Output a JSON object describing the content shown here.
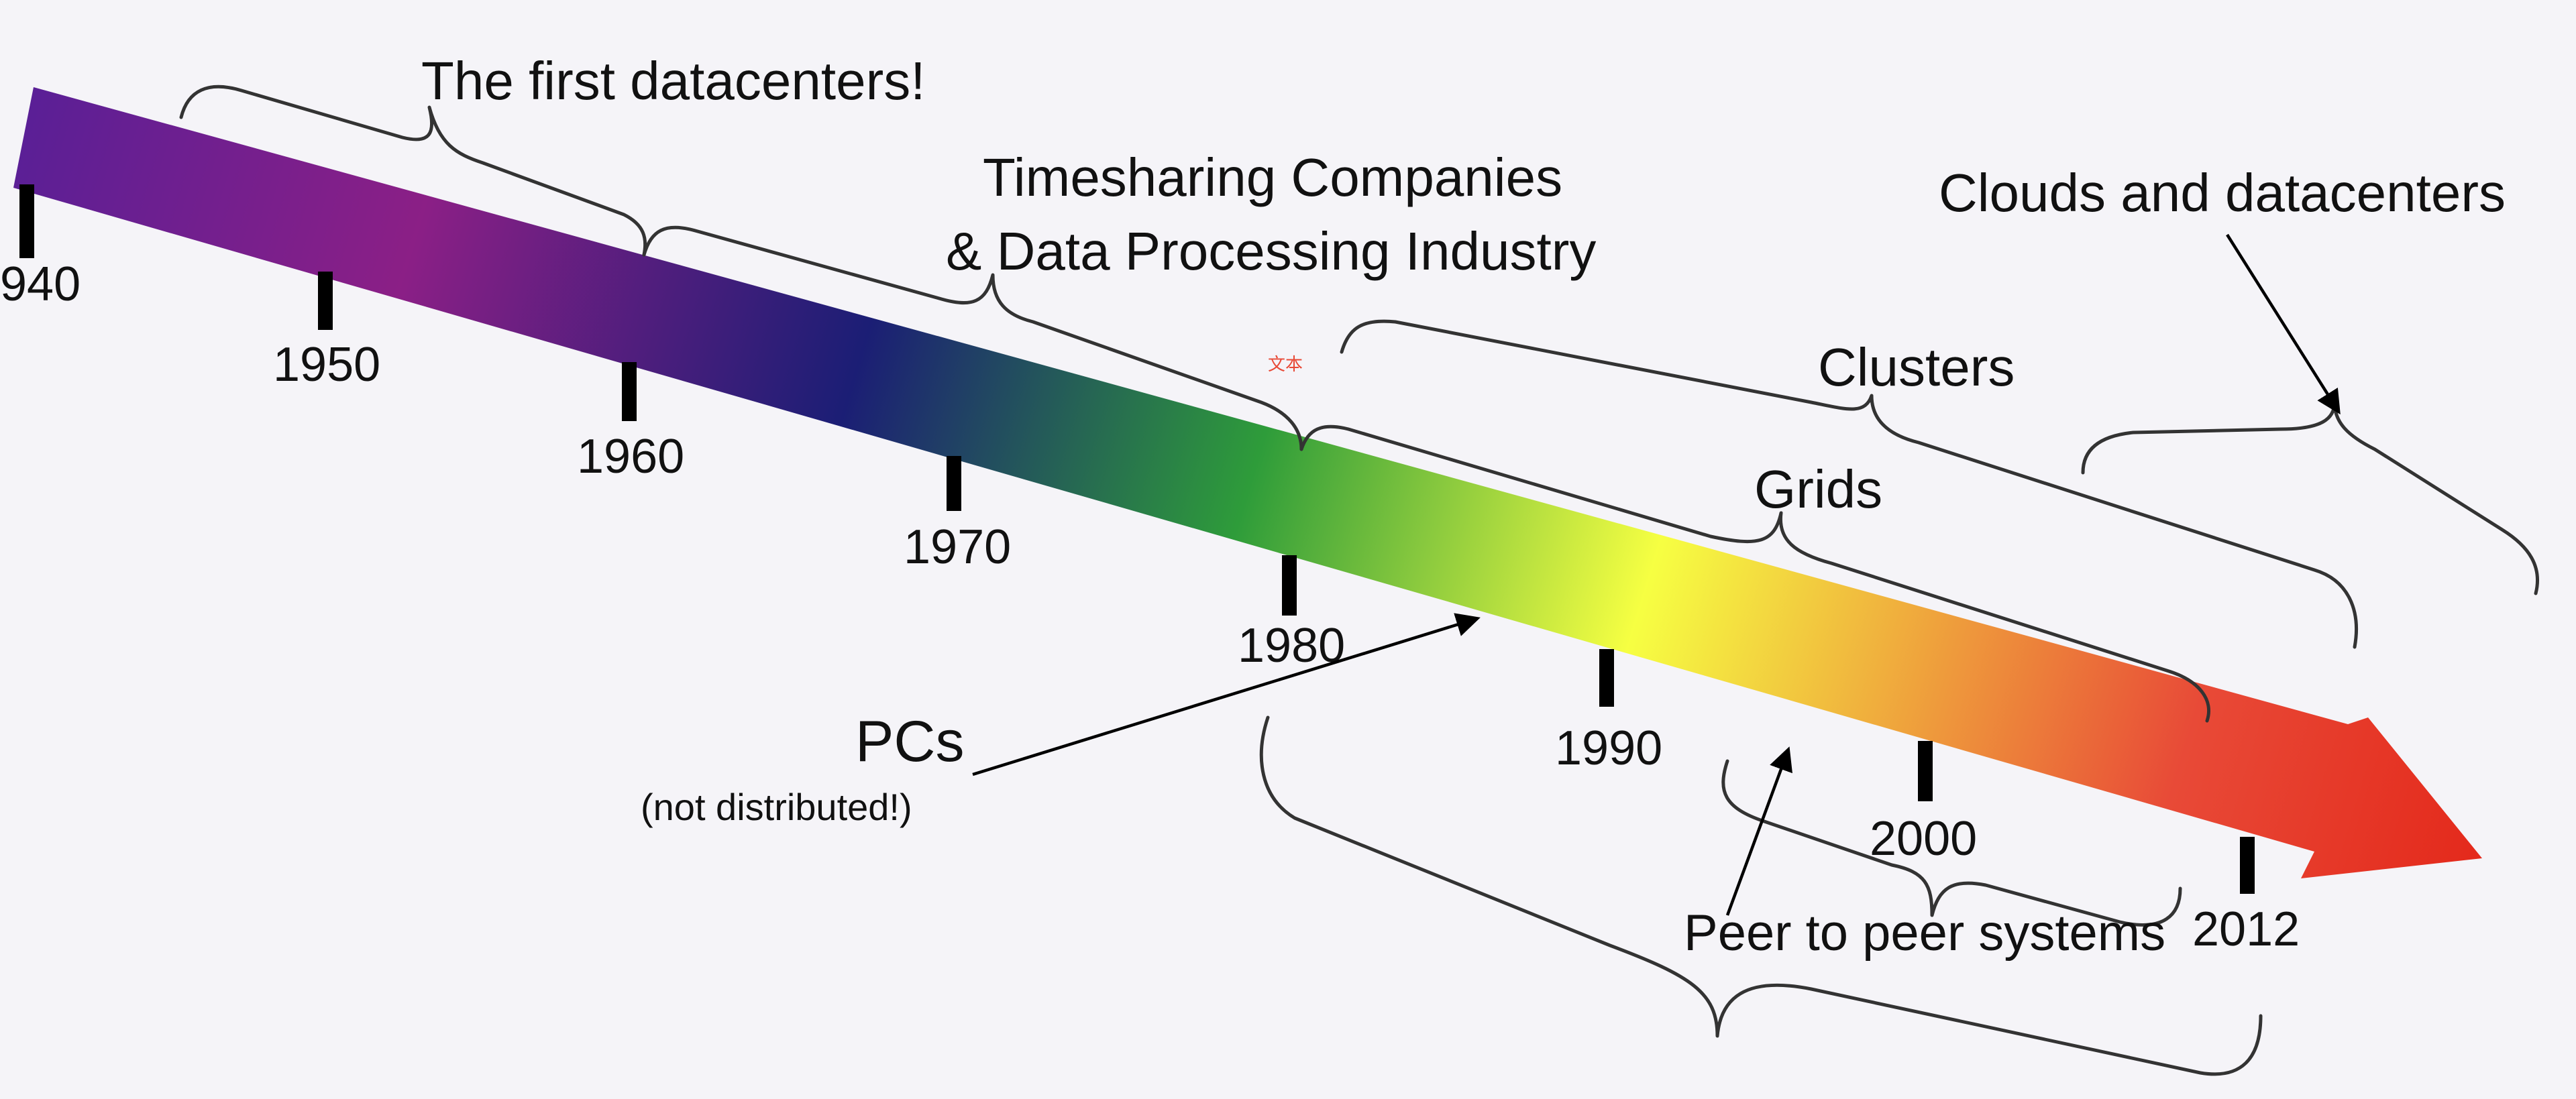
{
  "timeline": {
    "years": [
      "940",
      "1950",
      "1960",
      "1970",
      "1980",
      "1990",
      "2000",
      "2012"
    ],
    "colors": [
      "#5a1f96",
      "#8b1f86",
      "#1b1e75",
      "#2e9c3a",
      "#f6ff42",
      "#e84a37",
      "#e42a1c"
    ]
  },
  "eras": {
    "first_datacenters": "The first datacenters!",
    "timesharing_line1": "Timesharing Companies",
    "timesharing_line2": "& Data Processing Industry",
    "clouds": "Clouds and datacenters",
    "clusters": "Clusters",
    "grids": "Grids",
    "pcs": "PCs",
    "pcs_note": "(not distributed!)",
    "p2p": "Peer to peer systems"
  },
  "overlay_mark": "文本"
}
